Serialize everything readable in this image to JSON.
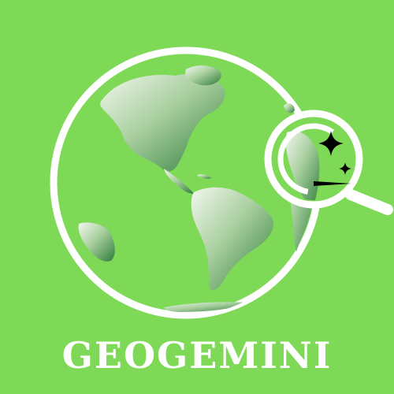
{
  "brand": {
    "name": "GEOGEMINI"
  },
  "colors": {
    "background": "#7ed957",
    "ring": "#ffffff",
    "continent_light": "#e6f1e1",
    "continent_dark": "#2e7d3a",
    "sparkle": "#000000"
  },
  "icons": [
    "globe-icon",
    "magnifying-glass-icon",
    "sparkle-icon"
  ]
}
